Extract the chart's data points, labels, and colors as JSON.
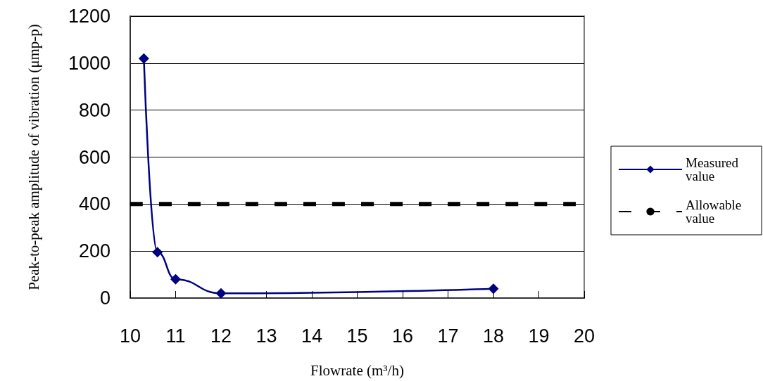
{
  "chart_data": {
    "type": "line",
    "xlabel": "Flowrate (m³/h)",
    "ylabel": "Peak-to-peak amplitude of vibration (μmp-p)",
    "xlim": [
      10,
      20
    ],
    "xticks": [
      10,
      11,
      12,
      13,
      14,
      15,
      16,
      17,
      18,
      19,
      20
    ],
    "ylim": [
      0,
      1200
    ],
    "yticks": [
      0,
      200,
      400,
      600,
      800,
      1000,
      1200
    ],
    "grid": "y",
    "legend": "right",
    "series": [
      {
        "name": "Measured value",
        "color": "#000080",
        "x": [
          10.3,
          10.6,
          11,
          12,
          18
        ],
        "values": [
          1020,
          195,
          80,
          20,
          40
        ],
        "marker": "diamond",
        "line_style": "solid"
      },
      {
        "name": "Allowable value",
        "color": "#000000",
        "x": [
          10,
          20
        ],
        "values": [
          400,
          400
        ],
        "marker": "none",
        "line_style": "dashed"
      }
    ]
  }
}
